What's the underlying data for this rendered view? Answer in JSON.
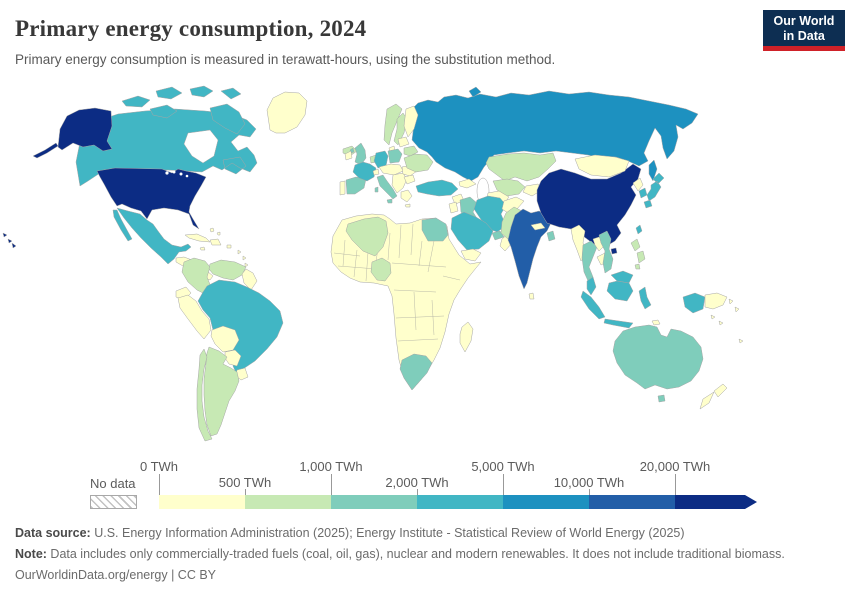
{
  "header": {
    "title": "Primary energy consumption, 2024",
    "subtitle": "Primary energy consumption is measured in terawatt-hours, using the substitution method.",
    "logo": {
      "line1": "Our World",
      "line2": "in Data",
      "bg_color": "#0d2e52",
      "accent_color": "#cf2128"
    }
  },
  "legend": {
    "no_data_label": "No data",
    "ticks": [
      {
        "label": "0 TWh",
        "row": "top"
      },
      {
        "label": "500 TWh",
        "row": "bottom"
      },
      {
        "label": "1,000 TWh",
        "row": "top"
      },
      {
        "label": "2,000 TWh",
        "row": "bottom"
      },
      {
        "label": "5,000 TWh",
        "row": "top"
      },
      {
        "label": "10,000 TWh",
        "row": "bottom"
      },
      {
        "label": "20,000 TWh",
        "row": "top"
      }
    ]
  },
  "footer": {
    "source_label": "Data source:",
    "source_text": " U.S. Energy Information Administration (2025); Energy Institute - Statistical Review of World Energy (2025)",
    "note_label": "Note:",
    "note_text": " Data includes only commercially-traded fuels (coal, oil, gas), nuclear and modern renewables. It does not include traditional biomass.",
    "license": "OurWorldinData.org/energy | CC BY"
  },
  "chart_data": {
    "type": "choropleth",
    "title": "Primary energy consumption, 2024",
    "unit": "TWh",
    "bin_edges_twh": [
      0,
      500,
      1000,
      2000,
      5000,
      10000,
      20000
    ],
    "bins": [
      {
        "range": "0–500 TWh",
        "color": "#ffffcc"
      },
      {
        "range": "500–1,000 TWh",
        "color": "#c7e9b4"
      },
      {
        "range": "1,000–2,000 TWh",
        "color": "#7fcdbb"
      },
      {
        "range": "2,000–5,000 TWh",
        "color": "#41b6c4"
      },
      {
        "range": "5,000–10,000 TWh",
        "color": "#1d91c0"
      },
      {
        "range": "10,000–20,000 TWh",
        "color": "#225ea8"
      },
      {
        "range": "20,000+ TWh",
        "color": "#0c2c84"
      }
    ],
    "no_data": {
      "label": "No data",
      "pattern": "gray-hatch"
    },
    "regions": {
      "greenland": 0,
      "canada": 3,
      "arctic-islands": 3,
      "alaska": 6,
      "hawaii": 6,
      "usa": 6,
      "mexico": 3,
      "central-america": 0,
      "cuba": 0,
      "hispaniola": 0,
      "caribbean": 0,
      "bahamas": 0,
      "colombia": 1,
      "venezuela": 1,
      "guyanas": 0,
      "ecuador": 0,
      "peru": 0,
      "brazil": 3,
      "bolivia": 0,
      "paraguay": 0,
      "uruguay": 0,
      "argentina": 1,
      "chile": 1,
      "iceland": 1,
      "norway": 1,
      "sweden": 1,
      "finland": 0,
      "denmark": 0,
      "uk": 2,
      "ireland": 0,
      "portugal": 0,
      "spain": 2,
      "france": 3,
      "netherlands": 1,
      "germany": 3,
      "poland": 2,
      "central-europe": 0,
      "switzerland": 0,
      "italy": 2,
      "balkans": 0,
      "greece": 0,
      "romania": 0,
      "bulgaria": 0,
      "ukraine": 1,
      "belarus": 1,
      "baltics": 0,
      "russia": 4,
      "novaya-zemlya": 4,
      "sakhalin": 4,
      "kazakhstan": 1,
      "uzbekistan": 1,
      "turkmenistan": 0,
      "kyrgyzstan-tajikistan": 0,
      "caucasus": 0,
      "turkey": 3,
      "syria": 0,
      "levant": 0,
      "iraq": 2,
      "iran": 3,
      "saudi-arabia": 3,
      "gulf-states": 2,
      "oman": 0,
      "yemen": 0,
      "afghanistan": 0,
      "pakistan": 1,
      "india": 5,
      "nepal": 0,
      "bangladesh": 2,
      "sri-lanka": 0,
      "china": 6,
      "taiwan": 3,
      "mongolia": 0,
      "north-korea": 0,
      "south-korea": 3,
      "japan": 3,
      "myanmar": 0,
      "thailand": 2,
      "laos": 0,
      "cambodia": 0,
      "vietnam": 2,
      "malaysia": 3,
      "indonesia": 3,
      "timor": 0,
      "philippines": 1,
      "papua-new-guinea": 0,
      "pacific-islands": 0,
      "africa-other": 0,
      "madagascar": 0,
      "algeria": 1,
      "egypt": 2,
      "nigeria": 1,
      "south-africa": 2,
      "australia": 2,
      "tasmania": 2,
      "new-zealand": 0
    }
  }
}
